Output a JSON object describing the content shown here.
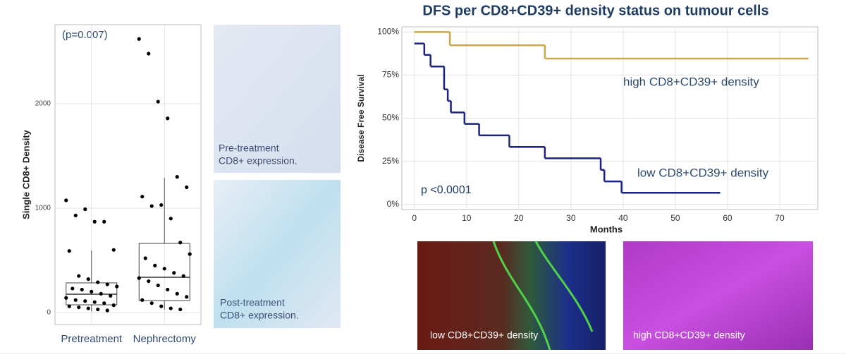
{
  "chart_data": [
    {
      "type": "box",
      "y_label": "Single CD8+ Density",
      "annotation": "(p=0.007)",
      "categories": [
        "Pretreatment",
        "Nephrectomy"
      ],
      "boxes": [
        {
          "low": 10,
          "q1": 74,
          "median": 176,
          "q3": 284,
          "high": 595
        },
        {
          "low": 30,
          "q1": 115,
          "median": 338,
          "q3": 662,
          "high": 1290
        }
      ],
      "points": [
        [
          1075,
          930,
          990,
          870,
          870,
          600,
          590,
          350,
          320,
          290,
          270,
          250,
          230,
          220,
          200,
          180,
          160,
          140,
          120,
          110,
          100,
          90,
          70,
          60,
          50,
          40,
          30,
          20
        ],
        [
          2620,
          2480,
          2020,
          1860,
          1300,
          1200,
          1110,
          1020,
          1030,
          900,
          670,
          560,
          520,
          450,
          420,
          380,
          350,
          330,
          300,
          260,
          220,
          180,
          150,
          120,
          90,
          60,
          40,
          30
        ]
      ],
      "point_color": "#000000",
      "ylim": [
        -115,
        2757
      ],
      "yticks": [
        0,
        1000,
        2000
      ],
      "grid": true
    },
    {
      "type": "step",
      "title": "DFS per CD8+CD39+ density status on tumour cells",
      "x_label": "Months",
      "y_label": "Disease Free Survival",
      "annotation": "p <0.0001",
      "series": [
        {
          "name": "high CD8+CD39+ density",
          "color": "#c9a84a",
          "x": [
            0,
            6.8,
            25,
            75.5
          ],
          "values": [
            100,
            92.3,
            84.6,
            84.6
          ]
        },
        {
          "name": "low CD8+CD39+ density",
          "color": "#1a237e",
          "x": [
            0,
            1.9,
            3.1,
            5.7,
            6.4,
            7,
            9.6,
            12.4,
            18.2,
            25,
            35.7,
            36.4,
            39.7,
            58.6
          ],
          "values": [
            93.3,
            86.7,
            80,
            66.7,
            60,
            53.3,
            46.7,
            40,
            33.3,
            26.7,
            20,
            13.3,
            6.7,
            6.7
          ]
        }
      ],
      "xlim": [
        -2.4,
        77.3
      ],
      "xticks": [
        0,
        10,
        20,
        30,
        40,
        50,
        60,
        70
      ],
      "ylim": [
        -3,
        103
      ],
      "yticks": [
        {
          "value": 0,
          "label": "0%"
        },
        {
          "value": 25,
          "label": "25%"
        },
        {
          "value": 50,
          "label": "50%"
        },
        {
          "value": 75,
          "label": "75%"
        },
        {
          "value": 100,
          "label": "100%"
        }
      ],
      "grid": true
    }
  ],
  "images": [
    {
      "caption": [
        "Pre-treatment",
        "CD8+ expression."
      ]
    },
    {
      "caption": [
        "Post-treatment",
        "CD8+ expression."
      ]
    },
    {
      "caption": [
        "low CD8+CD39+ density"
      ]
    },
    {
      "caption": [
        "high CD8+CD39+ density"
      ]
    }
  ]
}
